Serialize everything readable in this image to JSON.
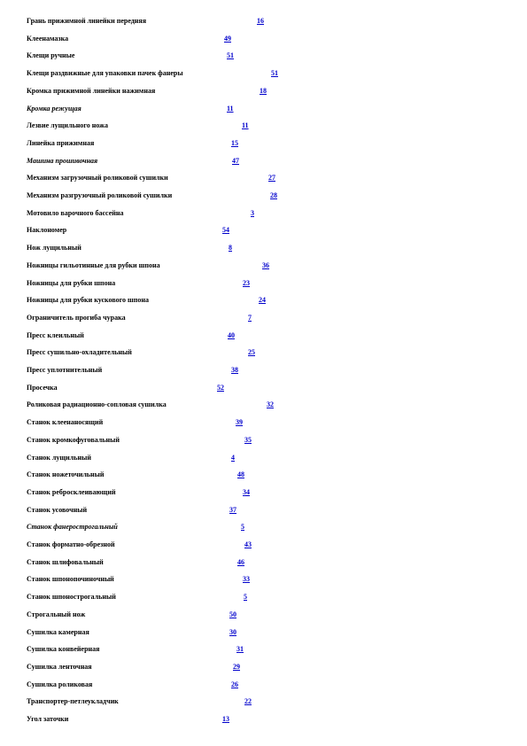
{
  "entries": [
    {
      "term": "Грань прижимной линейки передняя",
      "page": "16"
    },
    {
      "term": "Клеенамазка",
      "page": "49"
    },
    {
      "term": "Клещи ручные",
      "page": "51"
    },
    {
      "term": "Клещи раздвижные для упаковки пачек фанеры",
      "page": "51"
    },
    {
      "term": "Кромка прижимной линейки нажимная",
      "page": "18"
    },
    {
      "term": "Кромка режущая",
      "page": "11"
    },
    {
      "term": "Лезвие лущильного ножа",
      "page": "11"
    },
    {
      "term": "Линейка прижимная",
      "page": "15"
    },
    {
      "term": "Машина прошивочная",
      "page": "47"
    },
    {
      "term": "Механизм загрузочный роликовой сушилки",
      "page": "27"
    },
    {
      "term": "Механизм разгрузочный роликовой сушилки",
      "page": "28"
    },
    {
      "term": "Мотовило варочного бассейна",
      "page": "3"
    },
    {
      "term": "Наклономер",
      "page": "54"
    },
    {
      "term": "Нож лущильный",
      "page": "8"
    },
    {
      "term": "Ножницы гильотинные для рубки шпона",
      "page": "36"
    },
    {
      "term": "Ножницы для рубки шпона",
      "page": "23"
    },
    {
      "term": "Ножницы для рубки кускового шпона",
      "page": "24"
    },
    {
      "term": "Ограничитель прогиба чурака",
      "page": "7"
    },
    {
      "term": "Пресс клеильный",
      "page": "40"
    },
    {
      "term": "Пресс сушильно-охладительный",
      "page": "25"
    },
    {
      "term": "Пресс уплотнительный",
      "page": "38"
    },
    {
      "term": "Просечка",
      "page": "52"
    },
    {
      "term": "Роликовая радиационно-сопловая сушилка",
      "page": "32"
    },
    {
      "term": "Станок клеенаносящий",
      "page": "39"
    },
    {
      "term": "Станок кромкофуговальный",
      "page": "35"
    },
    {
      "term": "Станок лущильный",
      "page": "4"
    },
    {
      "term": "Станок ножеточильный",
      "page": "48"
    },
    {
      "term": "Станок ребросклеивающий",
      "page": "34"
    },
    {
      "term": "Станок усовочный",
      "page": "37"
    },
    {
      "term": "Станок фанерострогальный",
      "page": "5"
    },
    {
      "term": "Станок форматно-обрезной",
      "page": "43"
    },
    {
      "term": "Станок шлифовальный",
      "page": "46"
    },
    {
      "term": "Станок шпонопочиночный",
      "page": "33"
    },
    {
      "term": "Станок шпонострогальный",
      "page": "5"
    },
    {
      "term": "Строгальный нож",
      "page": "50"
    },
    {
      "term": "Сушилка камерная",
      "page": "30"
    },
    {
      "term": "Сушилка конвейерная",
      "page": "31"
    },
    {
      "term": "Сушилка ленточная",
      "page": "29"
    },
    {
      "term": "Сушилка роликовая",
      "page": "26"
    },
    {
      "term": "Транспортер-петлеукладчик",
      "page": "22"
    },
    {
      "term": "Угол заточки",
      "page": "13"
    }
  ]
}
